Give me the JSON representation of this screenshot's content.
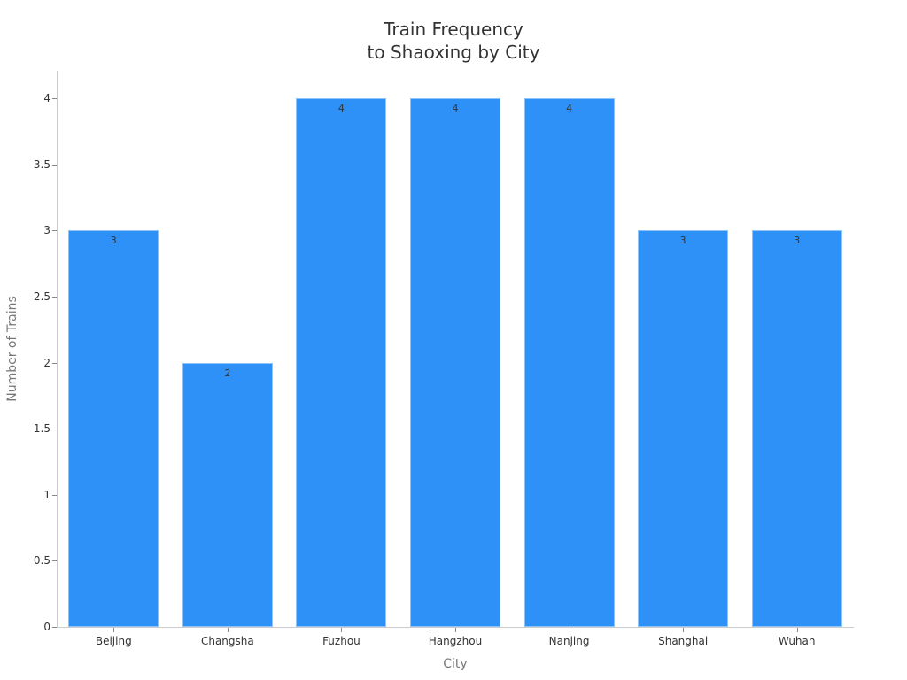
{
  "chart_data": {
    "type": "bar",
    "title": "Train Frequency\nto Shaoxing by City",
    "title_lines": [
      "Train Frequency",
      "to Shaoxing by City"
    ],
    "xlabel": "City",
    "ylabel": "Number of Trains",
    "categories": [
      "Beijing",
      "Changsha",
      "Fuzhou",
      "Hangzhou",
      "Nanjing",
      "Shanghai",
      "Wuhan"
    ],
    "values": [
      3,
      2,
      4,
      4,
      4,
      3,
      3
    ],
    "data_labels": [
      "3",
      "2",
      "4",
      "4",
      "4",
      "3",
      "3"
    ],
    "ylim": [
      0,
      4.2
    ],
    "yticks": [
      "0",
      "0.5",
      "1",
      "1.5",
      "2",
      "2.5",
      "3",
      "3.5",
      "4"
    ],
    "grid": false,
    "legend": null,
    "bar_color": "#2e91f8"
  }
}
